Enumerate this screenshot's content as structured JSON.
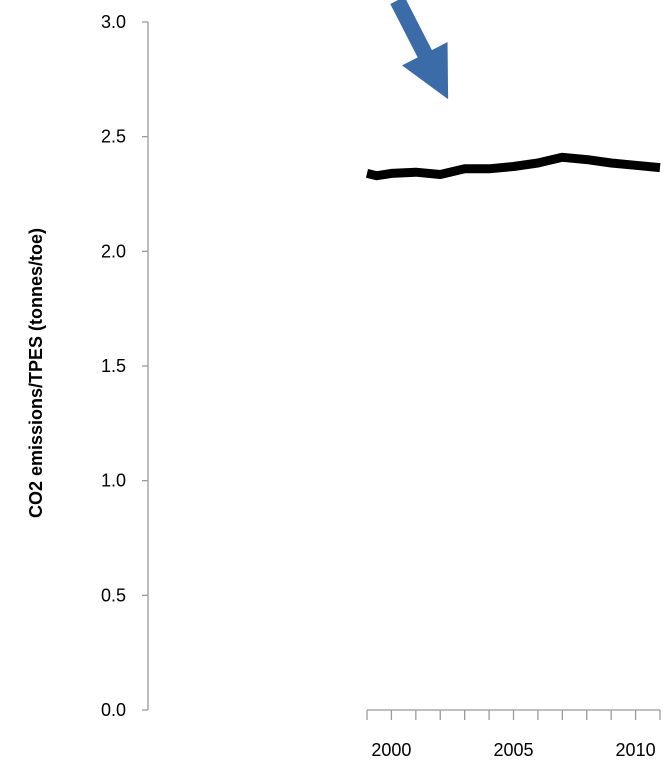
{
  "chart_data": {
    "type": "line",
    "title": "",
    "xlabel": "",
    "ylabel": "CO2 emissions/TPES (tonnes/toe)",
    "ylim": [
      0,
      3.0
    ],
    "yticks": [
      "0.0",
      "0.5",
      "1.0",
      "1.5",
      "2.0",
      "2.5",
      "3.0"
    ],
    "xticks": [
      "2000",
      "2005",
      "2010"
    ],
    "xlim": [
      1999,
      2011
    ],
    "grid": false,
    "series": [
      {
        "x": [
          1999,
          1999.4,
          2000,
          2001,
          2002,
          2003,
          2004,
          2005,
          2006,
          2007,
          2008,
          2009,
          2010,
          2011
        ],
        "values": [
          2.34,
          2.33,
          2.34,
          2.345,
          2.335,
          2.36,
          2.36,
          2.37,
          2.385,
          2.41,
          2.4,
          2.385,
          2.375,
          2.365
        ],
        "color": "#000000"
      }
    ],
    "annotations": [
      {
        "type": "arrow",
        "color": "#3b6ca8",
        "from": [
          2000.7,
          3.0
        ],
        "to": [
          2002.0,
          2.73
        ]
      }
    ]
  }
}
